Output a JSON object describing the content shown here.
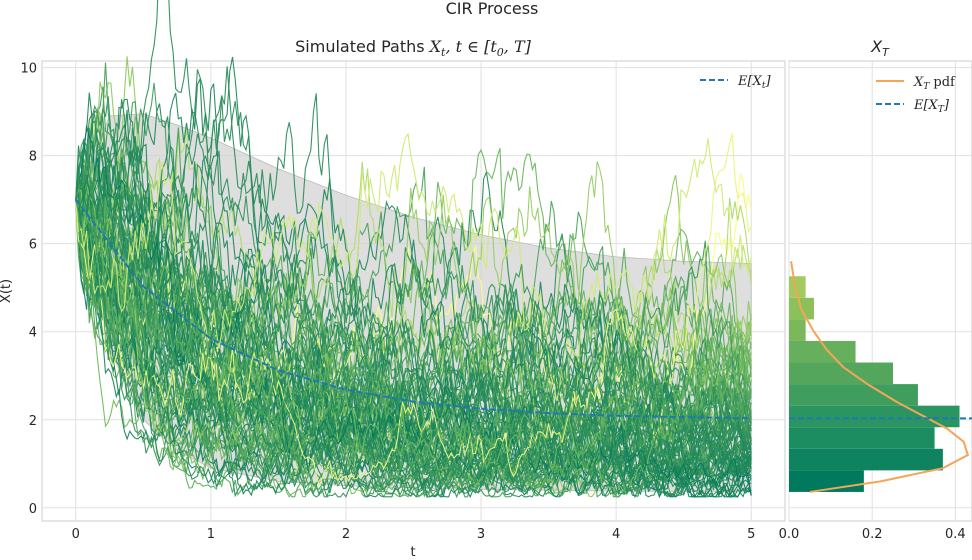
{
  "figure": {
    "suptitle": "CIR Process"
  },
  "chart_data": [
    {
      "type": "line",
      "title_text": "Simulated Paths ",
      "title_math": "X",
      "title_sub": "t",
      "title_rest": ", t ∈ [t",
      "title_sub2": "0",
      "title_end": ", T]",
      "xlabel": "t",
      "ylabel": "X(t)",
      "xlim": [
        -0.25,
        5.25
      ],
      "ylim": [
        -0.3,
        10.15
      ],
      "xticks": [
        "0",
        "1",
        "2",
        "3",
        "4",
        "5"
      ],
      "yticks": [
        "0",
        "2",
        "4",
        "6",
        "8",
        "10"
      ],
      "grid": true,
      "process": {
        "x0": 7.0,
        "theta": 2.0,
        "kappa": 1.0,
        "sigma": 0.8,
        "T": 5,
        "n_steps": 250,
        "n_paths": 100
      },
      "mean_series": {
        "name": "E[X_t]",
        "legend_label": "E[X",
        "legend_sub": "t",
        "legend_end": "]",
        "color": "#1f77b4",
        "x": [
          0,
          0.5,
          1,
          1.5,
          2,
          2.5,
          3,
          3.5,
          4,
          4.5,
          5
        ],
        "values": [
          7.0,
          5.03,
          3.84,
          3.12,
          2.68,
          2.41,
          2.25,
          2.15,
          2.09,
          2.06,
          2.03
        ]
      },
      "band": {
        "color": "#d3d3d3",
        "x": [
          0,
          0.25,
          0.5,
          0.75,
          1,
          1.5,
          2,
          2.5,
          3,
          3.5,
          4,
          4.5,
          5
        ],
        "upper": [
          7.0,
          8.9,
          8.95,
          8.7,
          8.4,
          7.7,
          7.1,
          6.6,
          6.2,
          5.9,
          5.7,
          5.6,
          5.55
        ],
        "lower": [
          7.0,
          3.6,
          2.0,
          1.3,
          0.9,
          0.6,
          0.5,
          0.45,
          0.42,
          0.4,
          0.38,
          0.37,
          0.36
        ]
      },
      "legend_position": "top-right",
      "path_colormap": [
        "#00795d",
        "#2e8f5c",
        "#5aae5c",
        "#8cc860",
        "#c2e370",
        "#ffff85"
      ]
    },
    {
      "type": "bar",
      "orientation": "horizontal",
      "title_math": "X",
      "title_sub": "T",
      "xlim": [
        0,
        0.44
      ],
      "xticks": [
        "0.0",
        "0.2",
        "0.4"
      ],
      "ylim": [
        -0.3,
        10.15
      ],
      "bin_edges": [
        0.36,
        0.85,
        1.34,
        1.83,
        2.32,
        2.81,
        3.3,
        3.79,
        4.28,
        4.77,
        5.26,
        5.75,
        6.24,
        6.73
      ],
      "density": [
        0.18,
        0.37,
        0.35,
        0.41,
        0.31,
        0.25,
        0.16,
        0.04,
        0.06,
        0.04,
        0.0,
        0.0,
        0.0
      ],
      "bar_colors": [
        "#00795d",
        "#0f8360",
        "#1c8d61",
        "#2a9560",
        "#3f9e5e",
        "#54a65d",
        "#66af5c",
        "#7ab85b",
        "#8cc05b",
        "#a1cb5e",
        "#b6d564",
        "#d0e36b",
        "#f1f27f"
      ],
      "pdf_series": {
        "name": "X_T pdf",
        "legend_label": "X",
        "legend_sub": "T",
        "legend_end": " pdf",
        "color": "#f4a55a",
        "y": [
          0.36,
          0.6,
          0.9,
          1.2,
          1.5,
          1.8,
          2.1,
          2.4,
          2.8,
          3.2,
          3.6,
          4.0,
          4.5,
          5.0,
          5.6
        ],
        "density": [
          0.05,
          0.22,
          0.37,
          0.43,
          0.42,
          0.38,
          0.32,
          0.26,
          0.19,
          0.13,
          0.09,
          0.06,
          0.03,
          0.015,
          0.005
        ]
      },
      "mean_series": {
        "name": "E[X_T]",
        "legend_label": "E[X",
        "legend_sub": "T",
        "legend_end": "]",
        "color": "#1f77b4",
        "value": 2.03
      },
      "legend_position": "top-right"
    }
  ]
}
